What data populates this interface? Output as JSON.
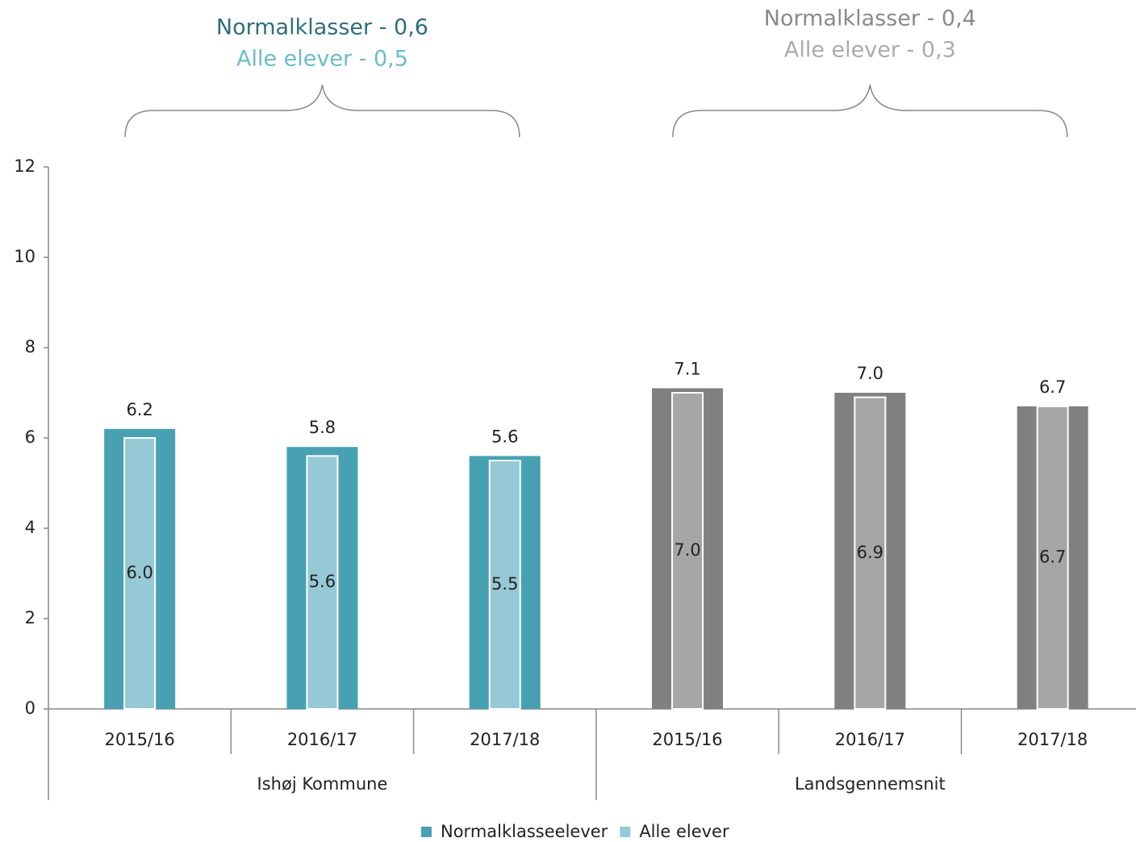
{
  "chart_data": {
    "type": "bar",
    "annotations": [
      {
        "text": "Normalklasser - 0,6",
        "color": "#2e6f78"
      },
      {
        "text": "Alle elever - 0,5",
        "color": "#6bbccb"
      },
      {
        "text": "Normalklasser - 0,4",
        "color": "#8a8a8a"
      },
      {
        "text": "Alle elever - 0,3",
        "color": "#ababab"
      }
    ],
    "categories": [
      "2015/16",
      "2016/17",
      "2017/18",
      "2015/16",
      "2016/17",
      "2017/18"
    ],
    "groups": [
      "Ishøj Kommune",
      "Landsgennemsnit"
    ],
    "series": [
      {
        "name": "Normalklasseelever",
        "color": "#47a1b3",
        "colors": [
          "#47a1b3",
          "#47a1b3",
          "#47a1b3",
          "#808080",
          "#808080",
          "#808080"
        ],
        "values": [
          6.2,
          5.8,
          5.6,
          7.1,
          7.0,
          6.7
        ],
        "value_labels": [
          "6.2",
          "5.8",
          "5.6",
          "7.1",
          "7.0",
          "6.7"
        ]
      },
      {
        "name": "Alle elever",
        "color": "#96c9d6",
        "colors": [
          "#96c9d6",
          "#96c9d6",
          "#96c9d6",
          "#a6a6a6",
          "#a6a6a6",
          "#a6a6a6"
        ],
        "values": [
          6.0,
          5.6,
          5.5,
          7.0,
          6.9,
          6.7
        ],
        "value_labels": [
          "6.0",
          "5.6",
          "5.5",
          "7.0",
          "6.9",
          "6.7"
        ]
      }
    ],
    "ylim": [
      0,
      12
    ],
    "yticks": [
      0,
      2,
      4,
      6,
      8,
      10,
      12
    ]
  }
}
